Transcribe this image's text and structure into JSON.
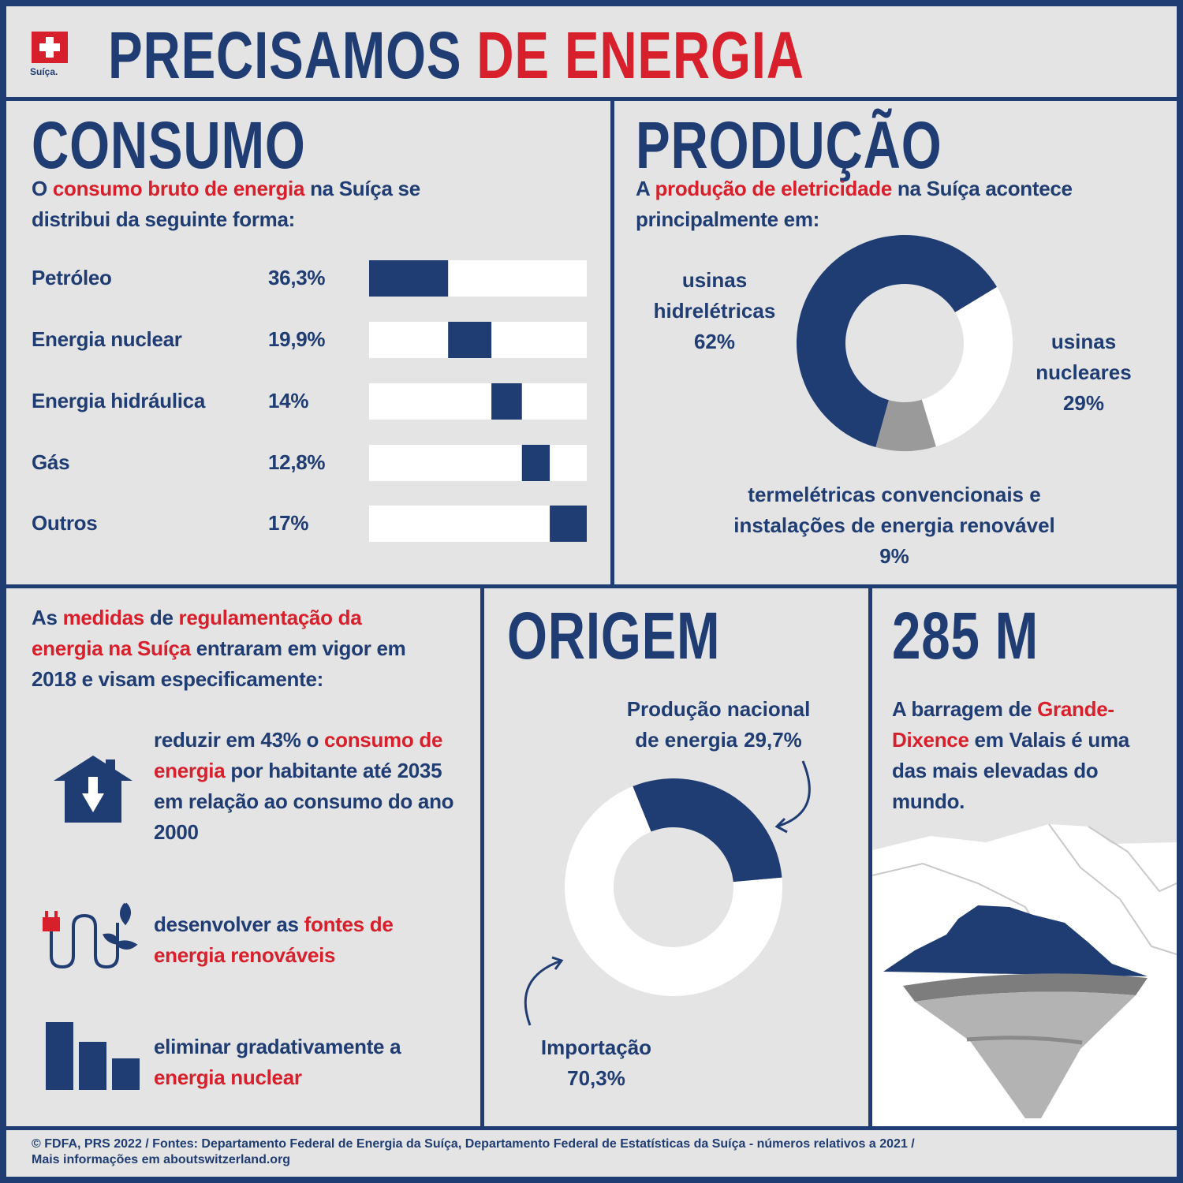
{
  "header": {
    "title": [
      {
        "text": "PRECISAMOS "
      },
      {
        "text": "DE ENERGIA",
        "color": "#d7202b"
      }
    ],
    "logo": "Suíça."
  },
  "chart_data": [
    {
      "type": "bar",
      "title": "CONSUMO",
      "subtitle": [
        {
          "text": "O "
        },
        {
          "text": "consumo bruto de energia",
          "color": "#d7202b"
        },
        {
          "text": " na Suíça se distribui da seguinte forma:"
        }
      ],
      "categories": [
        "Petróleo",
        "Energia nuclear",
        "Energia hidráulica",
        "Gás",
        "Outros"
      ],
      "values": [
        36.3,
        19.9,
        14,
        12.8,
        17
      ],
      "value_labels": [
        "36,3%",
        "19,9%",
        "14%",
        "12,8%",
        "17%"
      ],
      "xlim": [
        0,
        100
      ],
      "stacked": true,
      "color": "#1f3d73"
    },
    {
      "type": "pie",
      "title": "PRODUÇÃO",
      "subtitle": [
        {
          "text": "A "
        },
        {
          "text": "produção de eletricidade",
          "color": "#d7202b"
        },
        {
          "text": " na Suíça acontece principalmente em:"
        }
      ],
      "categories": [
        "usinas hidrelétricas",
        "usinas nucleares",
        "termelétricas convencionais e instalações de energia renovável"
      ],
      "values": [
        62,
        29,
        9
      ],
      "value_labels": [
        "62%",
        "29%",
        "9%"
      ],
      "colors": [
        "#1f3d73",
        "#ffffff",
        "#9a9a9a"
      ],
      "donut": true
    },
    {
      "type": "pie",
      "title": "ORIGEM",
      "categories": [
        "Produção nacional de energia",
        "Importação"
      ],
      "values": [
        29.7,
        70.3
      ],
      "value_labels": [
        "29,7%",
        "70,3%"
      ],
      "colors": [
        "#1f3d73",
        "#ffffff"
      ],
      "donut": true
    }
  ],
  "measures": {
    "intro": [
      {
        "text": "As "
      },
      {
        "text": "medidas",
        "color": "#d7202b"
      },
      {
        "text": " de "
      },
      {
        "text": "regulamentação da energia na Suíça",
        "color": "#d7202b"
      },
      {
        "text": " entraram em vigor em 2018 e visam especificamente:"
      }
    ],
    "items": [
      [
        {
          "text": "reduzir em 43% o "
        },
        {
          "text": "consumo de energia",
          "color": "#d7202b"
        },
        {
          "text": " por habitante até 2035 em relação ao consumo do ano 2000"
        }
      ],
      [
        {
          "text": "desenvolver as "
        },
        {
          "text": "fontes de energia renováveis",
          "color": "#d7202b"
        }
      ],
      [
        {
          "text": "eliminar gradativamente a "
        },
        {
          "text": "energia nuclear",
          "color": "#d7202b"
        }
      ]
    ]
  },
  "dam": {
    "title": "285 M",
    "text": [
      {
        "text": "A barragem de "
      },
      {
        "text": "Grande-Dixence",
        "color": "#d7202b"
      },
      {
        "text": " em Valais é uma das mais elevadas do mundo."
      }
    ]
  },
  "footer": [
    "© FDFA, PRS 2022 / Fontes: Departamento Federal de Energia da Suíça, Departamento Federal de Estatísticas da Suíça - números relativos a 2021 /",
    "Mais informações em aboutswitzerland.org"
  ]
}
